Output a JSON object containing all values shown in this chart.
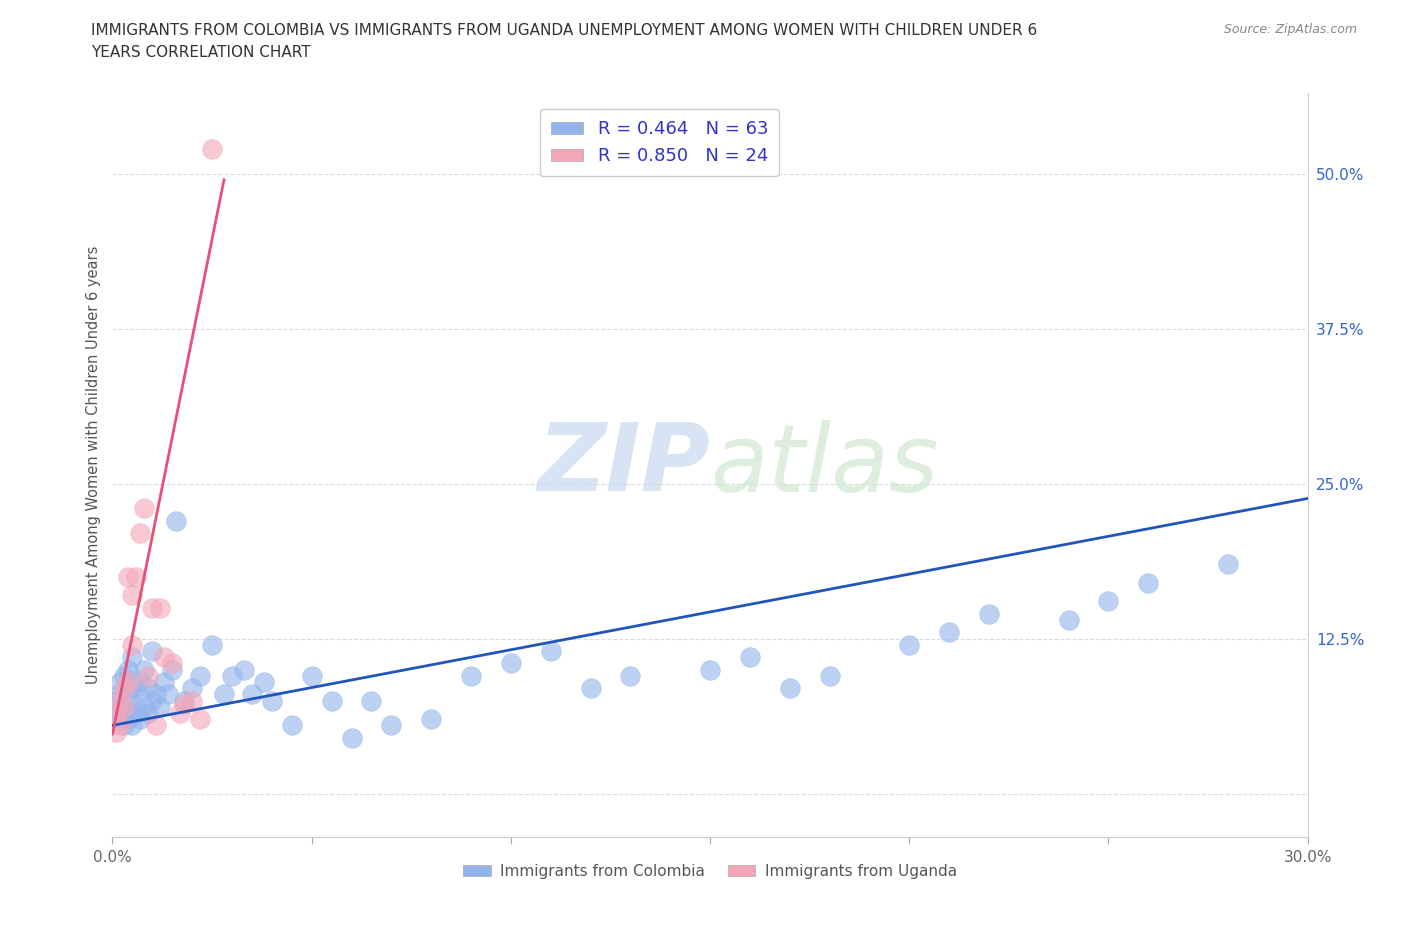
{
  "title_line1": "IMMIGRANTS FROM COLOMBIA VS IMMIGRANTS FROM UGANDA UNEMPLOYMENT AMONG WOMEN WITH CHILDREN UNDER 6",
  "title_line2": "YEARS CORRELATION CHART",
  "source": "Source: ZipAtlas.com",
  "ylabel": "Unemployment Among Women with Children Under 6 years",
  "xlim": [
    0.0,
    0.3
  ],
  "ylim": [
    -0.035,
    0.565
  ],
  "yticks_right": [
    0.0,
    0.125,
    0.25,
    0.375,
    0.5
  ],
  "ytick_right_labels": [
    "",
    "12.5%",
    "25.0%",
    "37.5%",
    "50.0%"
  ],
  "colombia_color": "#92b4ec",
  "uganda_color": "#f4a6b8",
  "colombia_line_color": "#2255bb",
  "uganda_line_color": "#e8507a",
  "colombia_R": 0.464,
  "colombia_N": 63,
  "uganda_R": 0.85,
  "uganda_N": 24,
  "watermark_zip": "ZIP",
  "watermark_atlas": "atlas",
  "background_color": "#ffffff",
  "colombia_scatter_x": [
    0.001,
    0.001,
    0.002,
    0.002,
    0.002,
    0.003,
    0.003,
    0.003,
    0.004,
    0.004,
    0.004,
    0.005,
    0.005,
    0.005,
    0.006,
    0.006,
    0.007,
    0.007,
    0.008,
    0.008,
    0.009,
    0.009,
    0.01,
    0.01,
    0.011,
    0.012,
    0.013,
    0.014,
    0.015,
    0.016,
    0.018,
    0.02,
    0.022,
    0.025,
    0.028,
    0.03,
    0.033,
    0.035,
    0.038,
    0.04,
    0.045,
    0.05,
    0.055,
    0.06,
    0.065,
    0.07,
    0.08,
    0.09,
    0.1,
    0.11,
    0.12,
    0.13,
    0.15,
    0.16,
    0.17,
    0.18,
    0.2,
    0.21,
    0.22,
    0.24,
    0.25,
    0.26,
    0.28
  ],
  "colombia_scatter_y": [
    0.065,
    0.075,
    0.06,
    0.08,
    0.09,
    0.055,
    0.07,
    0.095,
    0.06,
    0.08,
    0.1,
    0.055,
    0.075,
    0.11,
    0.065,
    0.085,
    0.06,
    0.09,
    0.07,
    0.1,
    0.065,
    0.085,
    0.075,
    0.115,
    0.08,
    0.07,
    0.09,
    0.08,
    0.1,
    0.22,
    0.075,
    0.085,
    0.095,
    0.12,
    0.08,
    0.095,
    0.1,
    0.08,
    0.09,
    0.075,
    0.055,
    0.095,
    0.075,
    0.045,
    0.075,
    0.055,
    0.06,
    0.095,
    0.105,
    0.115,
    0.085,
    0.095,
    0.1,
    0.11,
    0.085,
    0.095,
    0.12,
    0.13,
    0.145,
    0.14,
    0.155,
    0.17,
    0.185
  ],
  "uganda_scatter_x": [
    0.001,
    0.001,
    0.002,
    0.002,
    0.003,
    0.003,
    0.004,
    0.004,
    0.005,
    0.005,
    0.006,
    0.007,
    0.008,
    0.009,
    0.01,
    0.011,
    0.012,
    0.013,
    0.015,
    0.017,
    0.018,
    0.02,
    0.022,
    0.025
  ],
  "uganda_scatter_y": [
    0.05,
    0.065,
    0.055,
    0.075,
    0.07,
    0.085,
    0.09,
    0.175,
    0.12,
    0.16,
    0.175,
    0.21,
    0.23,
    0.095,
    0.15,
    0.055,
    0.15,
    0.11,
    0.105,
    0.065,
    0.072,
    0.075,
    0.06,
    0.52
  ],
  "col_trend_x": [
    0.0,
    0.3
  ],
  "col_trend_y": [
    0.055,
    0.238
  ],
  "uga_trend_x": [
    0.0,
    0.028
  ],
  "uga_trend_y": [
    0.048,
    0.495
  ]
}
